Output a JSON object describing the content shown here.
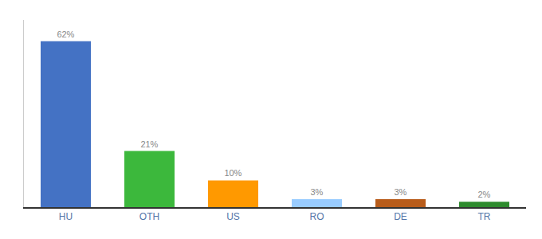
{
  "chart_data": {
    "type": "bar",
    "categories": [
      "HU",
      "OTH",
      "US",
      "RO",
      "DE",
      "TR"
    ],
    "values": [
      62,
      21,
      10,
      3,
      3,
      2
    ],
    "value_labels": [
      "62%",
      "21%",
      "10%",
      "3%",
      "3%",
      "2%"
    ],
    "colors": [
      "#4472c4",
      "#3cb83c",
      "#ff9900",
      "#99ccff",
      "#b85c1a",
      "#2e8b2e"
    ],
    "ylim": [
      0,
      70
    ],
    "grid": false,
    "data_labels": true,
    "tick_labels": "x"
  }
}
